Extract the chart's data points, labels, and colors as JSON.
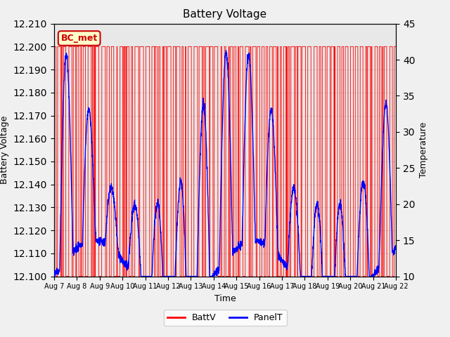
{
  "title": "Battery Voltage",
  "ylabel_left": "Battery Voltage",
  "ylabel_right": "Temperature",
  "xlabel": "Time",
  "ylim_left": [
    12.1,
    12.21
  ],
  "ylim_right": [
    10,
    45
  ],
  "yticks_left": [
    12.1,
    12.11,
    12.12,
    12.13,
    12.14,
    12.15,
    12.16,
    12.17,
    12.18,
    12.19,
    12.2,
    12.21
  ],
  "yticks_right": [
    10,
    15,
    20,
    25,
    30,
    35,
    40,
    45
  ],
  "xtick_labels": [
    "Aug 7",
    "Aug 8",
    "Aug 9",
    "Aug 10",
    "Aug 11",
    "Aug 12",
    "Aug 13",
    "Aug 14",
    "Aug 15",
    "Aug 16",
    "Aug 17",
    "Aug 18",
    "Aug 19",
    "Aug 20",
    "Aug 21",
    "Aug 22"
  ],
  "annotation_text": "BC_met",
  "annotation_bg": "#ffffcc",
  "annotation_border": "#cc0000",
  "grid_color": "#cccccc",
  "plot_bg": "#e8e8e8",
  "fig_bg": "#f0f0f0",
  "battv_color": "#ff0000",
  "panelt_color": "#0000ff",
  "legend_battv": "BattV",
  "legend_panelt": "PanelT",
  "n_days": 15,
  "pts_per_day": 144
}
